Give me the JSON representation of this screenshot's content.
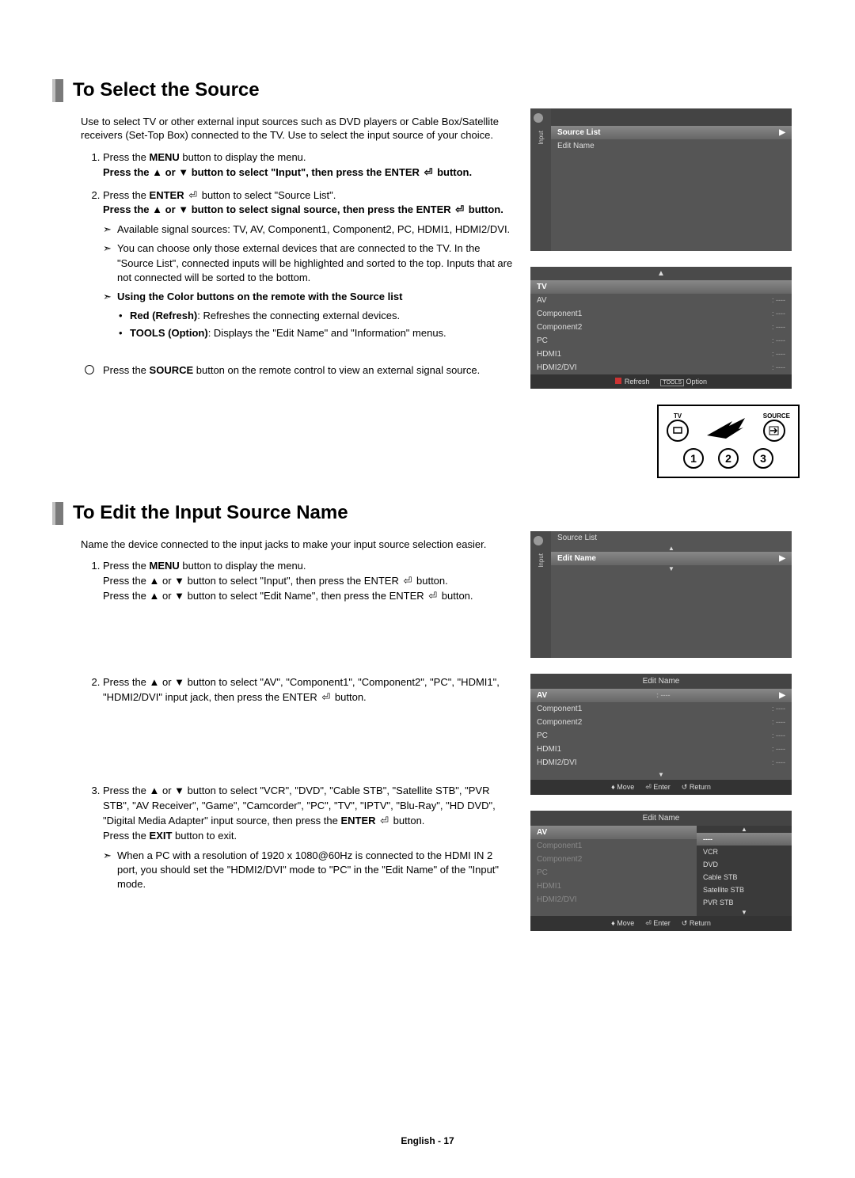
{
  "colors": {
    "text": "#000000",
    "osd_bg": "#555555",
    "osd_bar": "#333333",
    "osd_sel_grad_top": "#888888",
    "osd_sel_grad_bot": "#666666",
    "red": "#cc3333"
  },
  "section1": {
    "title": "To Select the Source",
    "intro": "Use to select TV or other external input sources such as DVD players or Cable Box/Satellite receivers (Set-Top Box) connected to the TV. Use to select the input source of your choice.",
    "step1_a": "Press the ",
    "step1_b": "MENU",
    "step1_c": " button to display the menu.",
    "step1_d1": "Press the ▲ or ▼ button to select \"Input\", then press the ENTER ",
    "step1_d2": " button.",
    "step2_a": "Press the ",
    "step2_b": "ENTER ",
    "step2_c": " button to select \"Source List\".",
    "step2_d1": "Press the ▲ or ▼ button to select signal source, then press the ENTER ",
    "step2_d2": " button.",
    "bullet_avail": "Available signal sources: TV, AV, Component1, Component2, PC, HDMI1, HDMI2/DVI.",
    "bullet_choose": "You can choose only those external devices that are connected to the TV. In the \"Source List\", connected inputs will be highlighted and sorted to the top. Inputs that are not connected will be sorted to the bottom.",
    "color_heading": "Using the Color buttons on the remote with the Source list",
    "red_label": "Red (Refresh)",
    "red_text": ": Refreshes the connecting external devices.",
    "tools_label": "TOOLS (Option)",
    "tools_text": ": Displays the \"Edit Name\" and \"Information\" menus.",
    "source_note_a": "Press the ",
    "source_note_b": "SOURCE",
    "source_note_c": " button on the remote control to view an external signal source."
  },
  "osd1a": {
    "vlabel": "Input",
    "item1": "Source List",
    "item2": "Edit Name"
  },
  "osd1b": {
    "tv": "TV",
    "rows": [
      {
        "name": "AV",
        "val": "----"
      },
      {
        "name": "Component1",
        "val": "----"
      },
      {
        "name": "Component2",
        "val": "----"
      },
      {
        "name": "PC",
        "val": "----"
      },
      {
        "name": "HDMI1",
        "val": "----"
      },
      {
        "name": "HDMI2/DVI",
        "val": "----"
      }
    ],
    "footer_refresh": "Refresh",
    "footer_tools": "TOOLS",
    "footer_option": "Option"
  },
  "remote": {
    "tv": "TV",
    "source": "SOURCE",
    "n1": "1",
    "n2": "2",
    "n3": "3"
  },
  "section2": {
    "title": "To Edit the Input Source Name",
    "intro": "Name the device connected to the input jacks to make your input source selection easier.",
    "step1_a": "Press the ",
    "step1_b": "MENU",
    "step1_c": " button to display the menu.",
    "step1_d": "Press the ▲ or ▼ button to select \"Input\", then press the ENTER ",
    "step1_e": " button.",
    "step1_f": "Press the ▲ or ▼ button to select \"Edit Name\", then press the ENTER ",
    "step1_g": " button.",
    "step2": "Press the ▲ or ▼ button to select \"AV\", \"Component1\", \"Component2\", \"PC\", \"HDMI1\", \"HDMI2/DVI\" input jack, then press the ENTER ",
    "step2b": " button.",
    "step3_a": "Press the ▲ or ▼ button to select \"VCR\", \"DVD\", \"Cable STB\", \"Satellite STB\", \"PVR STB\", \"AV Receiver\", \"Game\", \"Camcorder\", \"PC\", \"TV\", \"IPTV\", \"Blu-Ray\", \"HD DVD\", \"Digital Media Adapter\" input source, then press the ",
    "step3_b": "ENTER ",
    "step3_c": " button.",
    "step3_d": "Press the ",
    "step3_e": "EXIT",
    "step3_f": " button to exit.",
    "step3_note": "When a PC with a resolution of 1920 x 1080@60Hz is connected to the HDMI IN 2 port, you should set the \"HDMI2/DVI\" mode to \"PC\" in the \"Edit Name\" of the \"Input\" mode."
  },
  "osd2a": {
    "vlabel": "Input",
    "item1": "Source List",
    "item2": "Edit Name"
  },
  "osd2b": {
    "title": "Edit Name",
    "rows": [
      {
        "name": "AV",
        "val": "----"
      },
      {
        "name": "Component1",
        "val": "----"
      },
      {
        "name": "Component2",
        "val": "----"
      },
      {
        "name": "PC",
        "val": "----"
      },
      {
        "name": "HDMI1",
        "val": "----"
      },
      {
        "name": "HDMI2/DVI",
        "val": "----"
      }
    ],
    "move": "Move",
    "enter": "Enter",
    "ret": "Return"
  },
  "osd2c": {
    "title": "Edit Name",
    "left_rows": [
      "AV",
      "Component1",
      "Component2",
      "PC",
      "HDMI1",
      "HDMI2/DVI"
    ],
    "popup": [
      "----",
      "VCR",
      "DVD",
      "Cable STB",
      "Satellite STB",
      "PVR STB"
    ],
    "move": "Move",
    "enter": "Enter",
    "ret": "Return"
  },
  "footer": "English - 17",
  "enter_glyph": "⏎"
}
